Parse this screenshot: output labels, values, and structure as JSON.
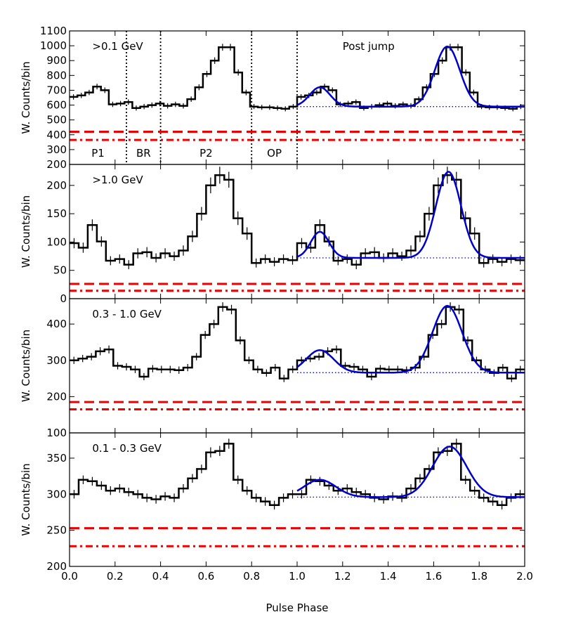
{
  "chart_data": {
    "type": "line",
    "xlabel": "Pulse Phase",
    "ylabel": "W. Counts/bin",
    "xlim": [
      0.0,
      2.0
    ],
    "xticks": [
      0.0,
      0.2,
      0.4,
      0.6,
      0.8,
      1.0,
      1.2,
      1.4,
      1.6,
      1.8,
      2.0
    ],
    "xtick_labels": [
      "0.0",
      "0.2",
      "0.4",
      "0.6",
      "0.8",
      "1.0",
      "1.2",
      "1.4",
      "1.6",
      "1.8",
      "2.0"
    ],
    "colors": {
      "histogram": "#000000",
      "fit": "#0000cc",
      "baseline": "#0000cc",
      "background": "#ee0000"
    },
    "panels": [
      {
        "label": ">0.1 GeV",
        "ylim": [
          200,
          1100
        ],
        "yticks": [
          200,
          300,
          400,
          500,
          600,
          700,
          800,
          900,
          1000,
          1100
        ],
        "ytick_labels": [
          "200",
          "300",
          "400",
          "500",
          "600",
          "700",
          "800",
          "900",
          "1000",
          "1100"
        ],
        "values": [
          655,
          665,
          685,
          725,
          700,
          605,
          610,
          620,
          580,
          590,
          600,
          610,
          595,
          605,
          595,
          640,
          720,
          810,
          900,
          990,
          990,
          820,
          685,
          590,
          585,
          585,
          580,
          575,
          590
        ],
        "errors": [
          18,
          18,
          18,
          19,
          19,
          18,
          18,
          18,
          17,
          18,
          18,
          18,
          18,
          18,
          18,
          18,
          20,
          21,
          22,
          23,
          23,
          21,
          19,
          17,
          17,
          17,
          17,
          17,
          17
        ],
        "fit": {
          "baseline": 590,
          "peaks": [
            {
              "center": 1.1,
              "amplitude": 130,
              "sigma": 0.045
            },
            {
              "center": 1.66,
              "amplitude": 405,
              "sigma": 0.055
            }
          ]
        },
        "background_levels": {
          "dashed": 420,
          "dashdot": 365
        },
        "vlines": [
          0.25,
          0.4,
          0.8,
          1.0
        ],
        "region_labels": [
          {
            "text": "P1",
            "x": 0.125
          },
          {
            "text": "BR",
            "x": 0.325
          },
          {
            "text": "P2",
            "x": 0.6
          },
          {
            "text": "OP",
            "x": 0.9
          }
        ],
        "annotation": "Post jump"
      },
      {
        "label": ">1.0 GeV",
        "ylim": [
          0,
          237
        ],
        "yticks": [
          0,
          50,
          100,
          150,
          200
        ],
        "ytick_labels": [
          "0",
          "50",
          "100",
          "150",
          "200"
        ],
        "values": [
          98,
          90,
          130,
          101,
          67,
          70,
          60,
          80,
          82,
          72,
          80,
          75,
          85,
          110,
          150,
          200,
          218,
          210,
          142,
          115,
          63,
          70,
          65,
          70,
          68
        ],
        "errors": [
          9,
          9,
          10,
          9,
          8,
          8,
          8,
          9,
          9,
          8,
          9,
          8,
          9,
          10,
          12,
          14,
          15,
          14,
          12,
          11,
          8,
          8,
          8,
          8,
          8
        ],
        "fit": {
          "baseline": 72,
          "peaks": [
            {
              "center": 1.1,
              "amplitude": 46,
              "sigma": 0.04
            },
            {
              "center": 1.665,
              "amplitude": 152,
              "sigma": 0.055
            }
          ]
        },
        "background_levels": {
          "dashed": 26,
          "dashdot": 14
        }
      },
      {
        "label": "0.3 - 1.0 GeV",
        "ylim": [
          100,
          470
        ],
        "yticks": [
          100,
          200,
          300,
          400
        ],
        "ytick_labels": [
          "100",
          "200",
          "300",
          "400"
        ],
        "values": [
          300,
          305,
          310,
          325,
          330,
          285,
          282,
          275,
          255,
          277,
          275,
          275,
          273,
          280,
          310,
          370,
          400,
          447,
          440,
          355,
          300,
          275,
          265,
          280,
          250,
          275
        ],
        "errors": [
          10,
          10,
          10,
          11,
          11,
          10,
          10,
          10,
          10,
          10,
          10,
          10,
          10,
          10,
          10,
          11,
          12,
          13,
          13,
          11,
          10,
          10,
          10,
          10,
          10,
          10
        ],
        "fit": {
          "baseline": 266,
          "peaks": [
            {
              "center": 1.1,
              "amplitude": 62,
              "sigma": 0.06
            },
            {
              "center": 1.66,
              "amplitude": 184,
              "sigma": 0.065
            }
          ]
        },
        "background_levels": {
          "dashed": 185,
          "dashdot": 165
        }
      },
      {
        "label": "0.1 - 0.3 GeV",
        "ylim": [
          200,
          385
        ],
        "yticks": [
          200,
          250,
          300,
          350
        ],
        "ytick_labels": [
          "200",
          "250",
          "300",
          "350"
        ],
        "values": [
          300,
          320,
          318,
          312,
          305,
          308,
          303,
          300,
          295,
          293,
          297,
          295,
          308,
          322,
          335,
          358,
          360,
          370,
          320,
          305,
          295,
          290,
          285,
          295,
          300
        ],
        "errors": [
          6,
          6,
          6,
          6,
          6,
          6,
          6,
          6,
          6,
          6,
          6,
          6,
          6,
          6,
          6,
          7,
          7,
          7,
          6,
          6,
          6,
          6,
          6,
          6,
          6
        ],
        "fit": {
          "baseline": 296,
          "peaks": [
            {
              "center": 1.1,
              "amplitude": 24,
              "sigma": 0.07
            },
            {
              "center": 1.67,
              "amplitude": 70,
              "sigma": 0.075
            }
          ]
        },
        "background_levels": {
          "dashed": 253,
          "dashdot": 228
        }
      }
    ]
  }
}
